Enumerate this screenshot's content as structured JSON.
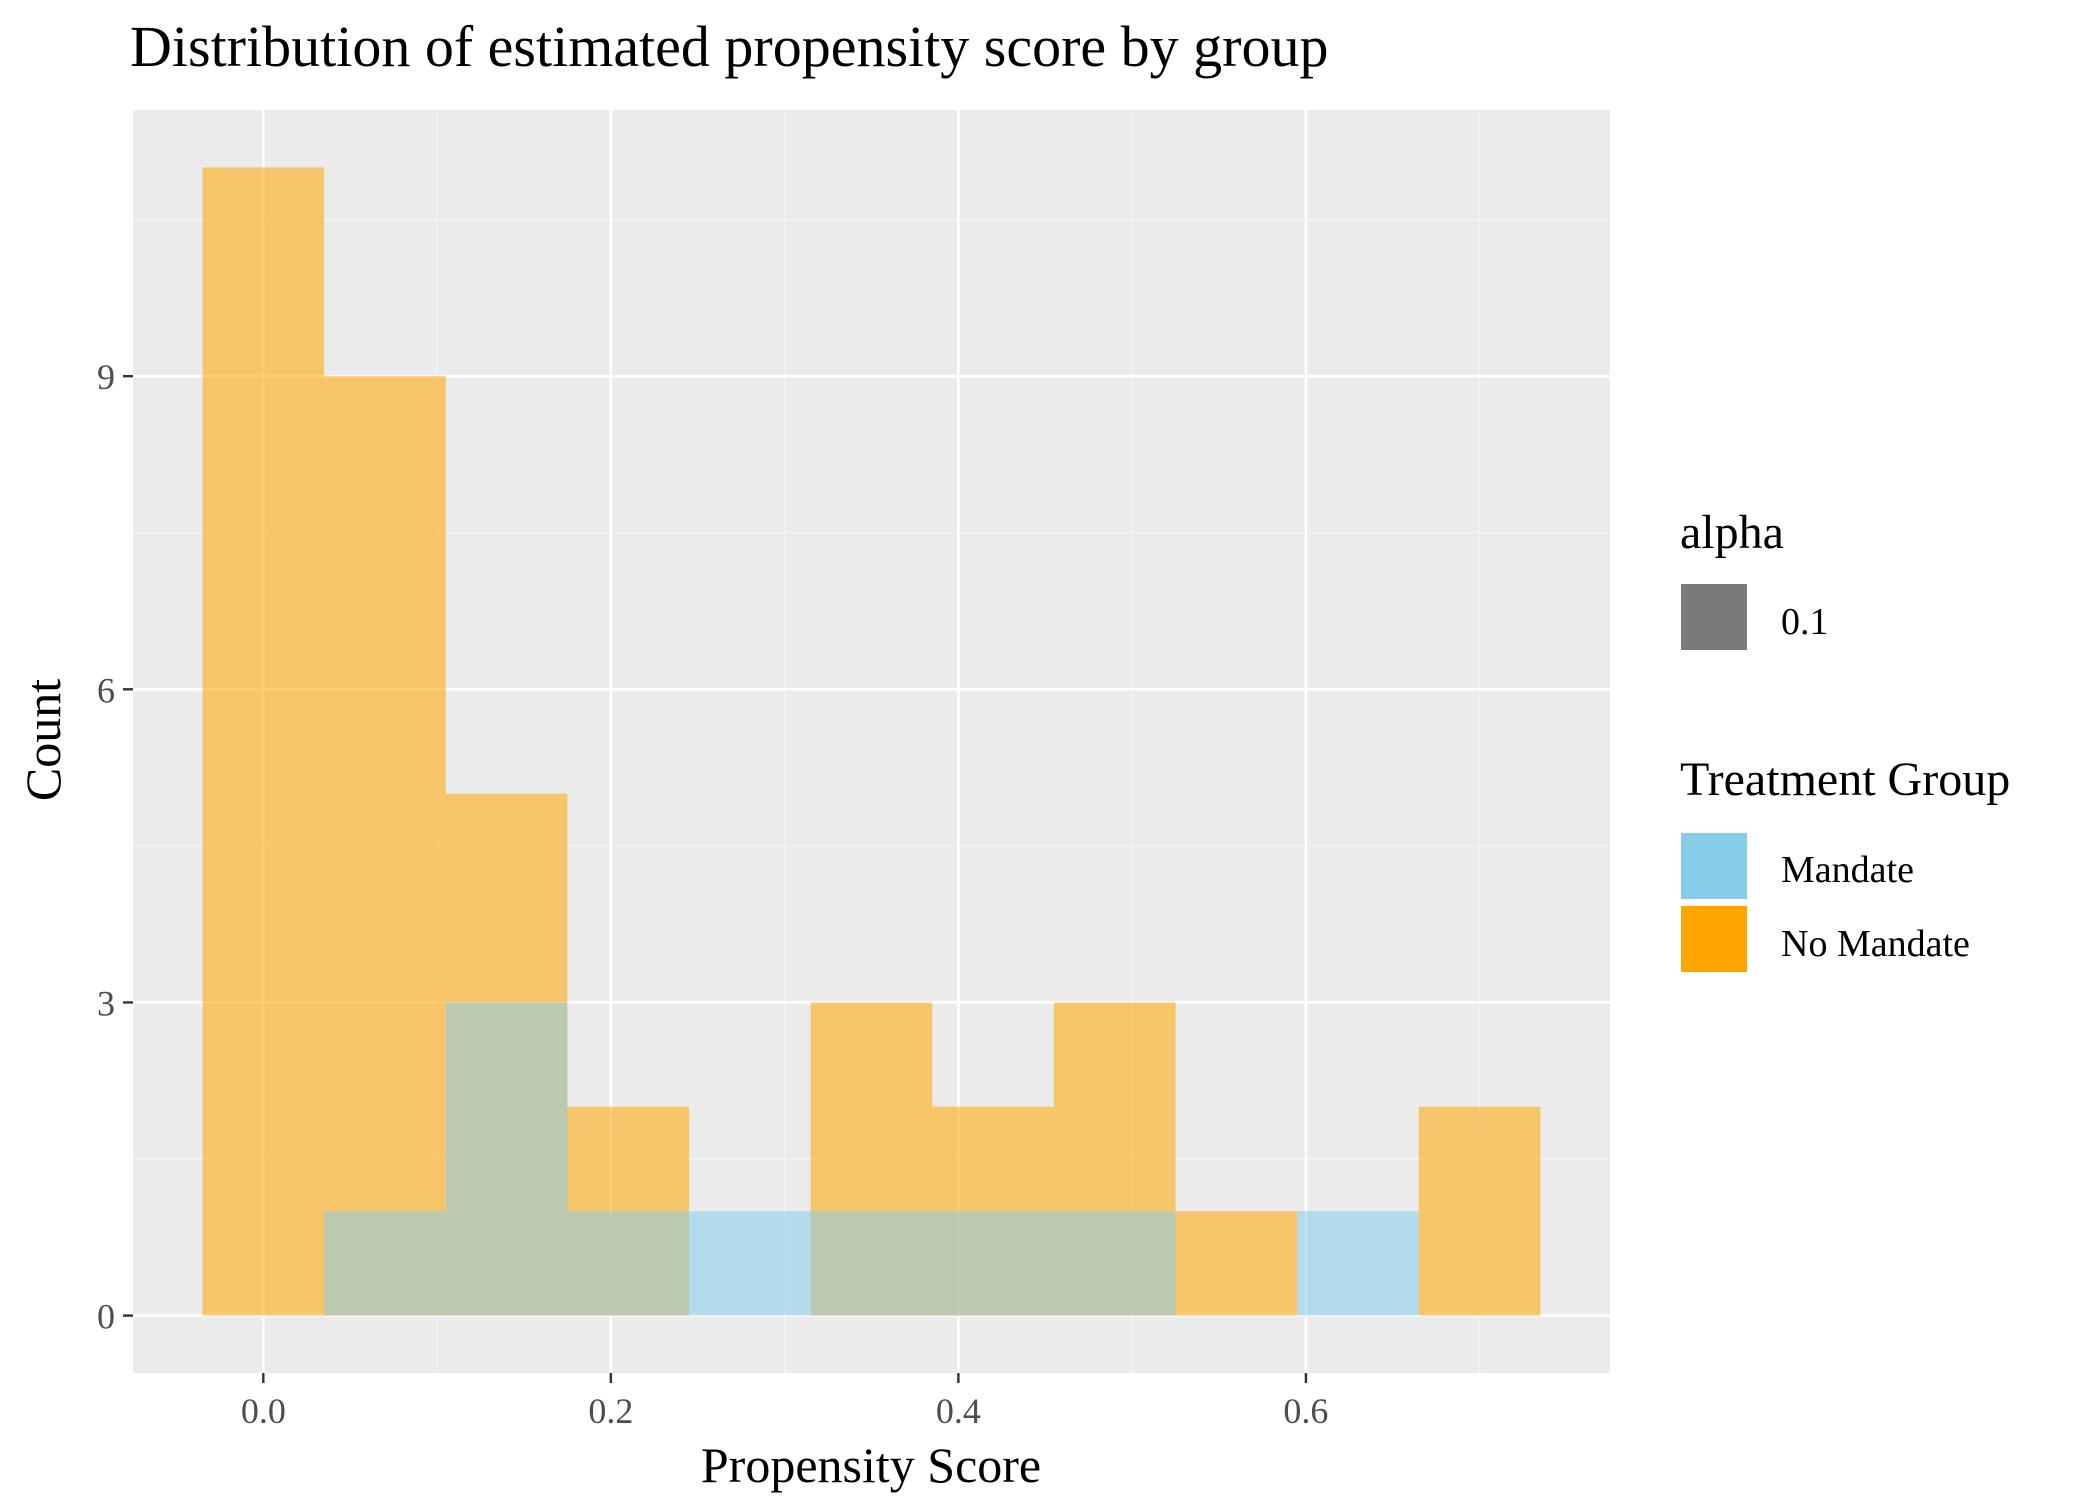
{
  "chart_data": {
    "type": "bar",
    "subtype": "overlapping-histogram",
    "title": "Distribution of estimated propensity score by group",
    "xlabel": "Propensity Score",
    "ylabel": "Count",
    "xlim": [
      -0.075,
      0.775
    ],
    "ylim": [
      -0.55,
      11.55
    ],
    "x_ticks": [
      0.0,
      0.2,
      0.4,
      0.6
    ],
    "x_tick_labels": [
      "0.0",
      "0.2",
      "0.4",
      "0.6"
    ],
    "y_ticks": [
      0,
      3,
      6,
      9
    ],
    "y_tick_labels": [
      "0",
      "3",
      "6",
      "9"
    ],
    "grid": true,
    "bin_width": 0.07,
    "bin_centers": [
      0.0,
      0.07,
      0.14,
      0.21,
      0.28,
      0.35,
      0.42,
      0.49,
      0.56,
      0.63,
      0.7
    ],
    "series": [
      {
        "name": "No Mandate",
        "color": "#FFA500",
        "values": [
          11,
          9,
          5,
          2,
          0,
          3,
          2,
          3,
          1,
          0,
          2
        ]
      },
      {
        "name": "Mandate",
        "color": "#87CEEB",
        "values": [
          0,
          1,
          3,
          1,
          1,
          1,
          1,
          1,
          0,
          1,
          0
        ]
      }
    ],
    "bar_opacity": 0.55,
    "legend": {
      "placement": "right",
      "alpha_title": "alpha",
      "alpha_label": "0.1",
      "alpha_swatch_color": "#7a7a7a",
      "fill_title": "Treatment Group",
      "fill_entries": [
        "Mandate",
        "No Mandate"
      ]
    },
    "colors": {
      "panel_background": "#EBEBEB",
      "grid_major": "#FFFFFF",
      "grid_minor": "#F5F5F5"
    }
  }
}
